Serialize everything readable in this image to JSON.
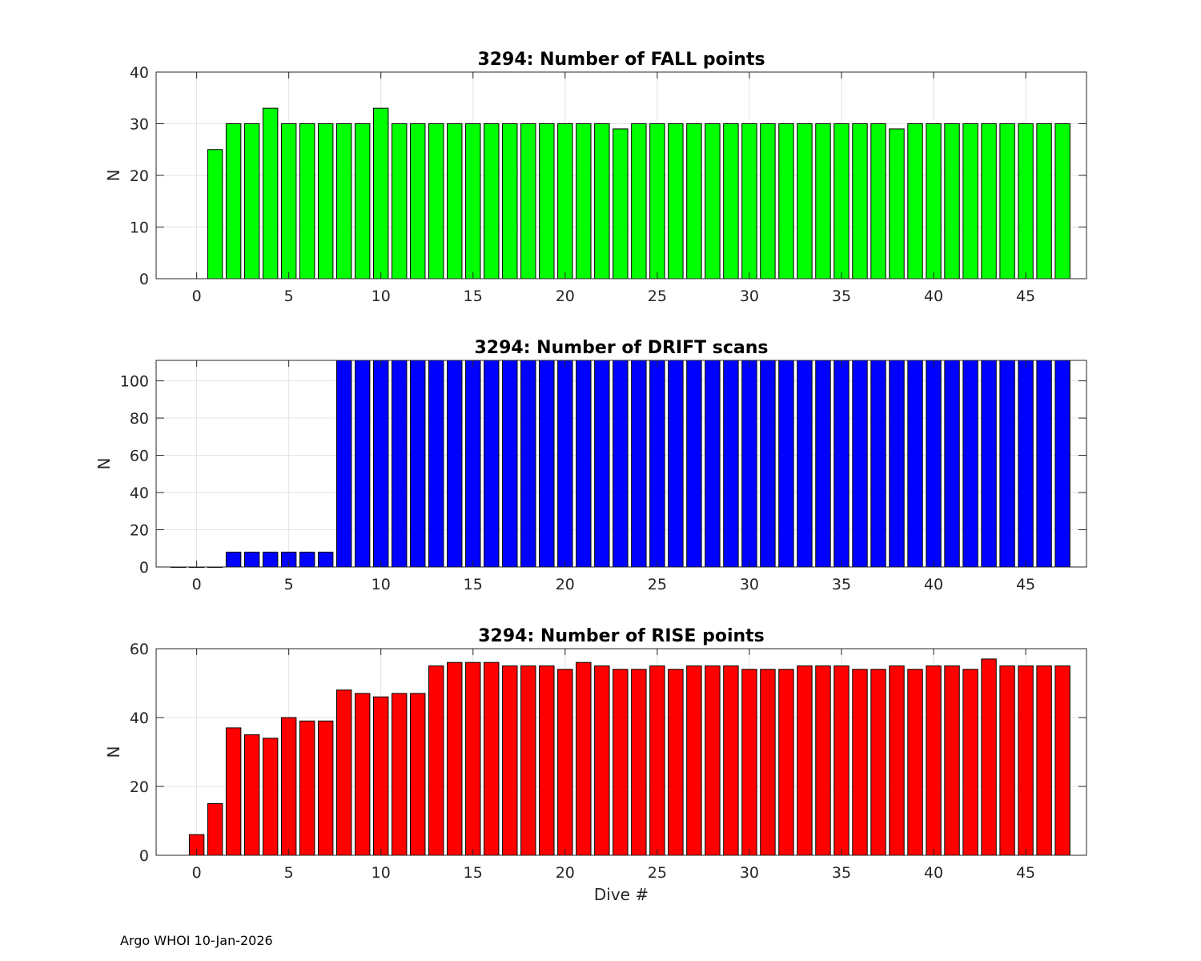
{
  "footer": {
    "text": "Argo WHOI 10-Jan-2026"
  },
  "chart_data": [
    {
      "type": "bar",
      "title": "3294: Number of FALL points",
      "xlabel": "",
      "ylabel": "N",
      "xlim": [
        -2.2,
        48.3
      ],
      "ylim": [
        0,
        40
      ],
      "xticks": [
        0,
        5,
        10,
        15,
        20,
        25,
        30,
        35,
        40,
        45
      ],
      "yticks": [
        0,
        10,
        20,
        30,
        40
      ],
      "grid": true,
      "color": "#00ff00",
      "x": [
        1,
        2,
        3,
        4,
        5,
        6,
        7,
        8,
        9,
        10,
        11,
        12,
        13,
        14,
        15,
        16,
        17,
        18,
        19,
        20,
        21,
        22,
        23,
        24,
        25,
        26,
        27,
        28,
        29,
        30,
        31,
        32,
        33,
        34,
        35,
        36,
        37,
        38,
        39,
        40,
        41,
        42,
        43,
        44,
        45,
        46,
        47
      ],
      "values": [
        25,
        30,
        30,
        33,
        30,
        30,
        30,
        30,
        30,
        33,
        30,
        30,
        30,
        30,
        30,
        30,
        30,
        30,
        30,
        30,
        30,
        30,
        29,
        30,
        30,
        30,
        30,
        30,
        30,
        30,
        30,
        30,
        30,
        30,
        30,
        30,
        30,
        29,
        30,
        30,
        30,
        30,
        30,
        30,
        30,
        30,
        30
      ]
    },
    {
      "type": "bar",
      "title": "3294: Number of DRIFT scans",
      "xlabel": "",
      "ylabel": "N",
      "xlim": [
        -2.2,
        48.3
      ],
      "ylim": [
        0,
        111
      ],
      "xticks": [
        0,
        5,
        10,
        15,
        20,
        25,
        30,
        35,
        40,
        45
      ],
      "yticks": [
        0,
        20,
        40,
        60,
        80,
        100
      ],
      "grid": true,
      "color": "#0000ff",
      "x": [
        -1,
        0,
        1,
        2,
        3,
        4,
        5,
        6,
        7,
        8,
        9,
        10,
        11,
        12,
        13,
        14,
        15,
        16,
        17,
        18,
        19,
        20,
        21,
        22,
        23,
        24,
        25,
        26,
        27,
        28,
        29,
        30,
        31,
        32,
        33,
        34,
        35,
        36,
        37,
        38,
        39,
        40,
        41,
        42,
        43,
        44,
        45,
        46,
        47
      ],
      "values": [
        0,
        0,
        0,
        8,
        8,
        8,
        8,
        8,
        8,
        111,
        111,
        111,
        111,
        111,
        111,
        111,
        111,
        111,
        111,
        111,
        111,
        111,
        111,
        111,
        111,
        111,
        111,
        111,
        111,
        111,
        111,
        111,
        111,
        111,
        111,
        111,
        111,
        111,
        111,
        111,
        111,
        111,
        111,
        111,
        111,
        111,
        111,
        111,
        111
      ]
    },
    {
      "type": "bar",
      "title": "3294: Number of RISE points",
      "xlabel": "Dive #",
      "ylabel": "N",
      "xlim": [
        -2.2,
        48.3
      ],
      "ylim": [
        0,
        60
      ],
      "xticks": [
        0,
        5,
        10,
        15,
        20,
        25,
        30,
        35,
        40,
        45
      ],
      "yticks": [
        0,
        20,
        40,
        60
      ],
      "grid": true,
      "color": "#ff0000",
      "x": [
        0,
        1,
        2,
        3,
        4,
        5,
        6,
        7,
        8,
        9,
        10,
        11,
        12,
        13,
        14,
        15,
        16,
        17,
        18,
        19,
        20,
        21,
        22,
        23,
        24,
        25,
        26,
        27,
        28,
        29,
        30,
        31,
        32,
        33,
        34,
        35,
        36,
        37,
        38,
        39,
        40,
        41,
        42,
        43,
        44,
        45,
        46,
        47
      ],
      "values": [
        6,
        15,
        37,
        35,
        34,
        40,
        39,
        39,
        48,
        47,
        46,
        47,
        47,
        55,
        56,
        56,
        56,
        55,
        55,
        55,
        54,
        56,
        55,
        54,
        54,
        55,
        54,
        55,
        55,
        55,
        54,
        54,
        54,
        55,
        55,
        55,
        54,
        54,
        55,
        54,
        55,
        55,
        54,
        57,
        55,
        55,
        55,
        55
      ]
    }
  ]
}
